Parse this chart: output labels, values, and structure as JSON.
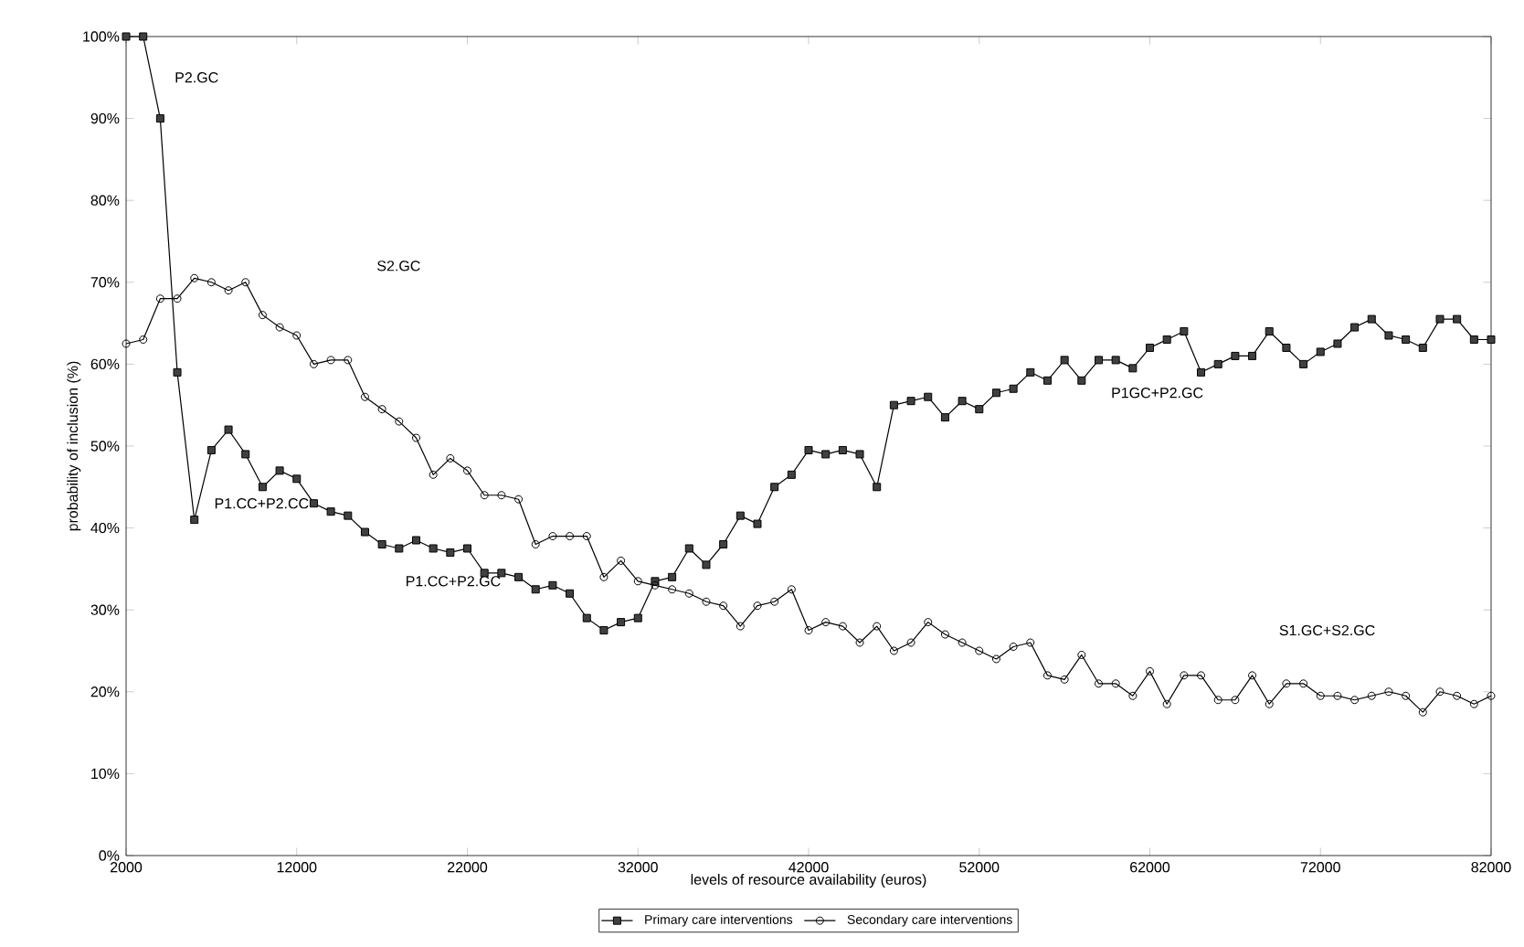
{
  "chart_data": {
    "type": "line",
    "xlabel": "levels of resource availability (euros)",
    "ylabel": "probability of inclusion (%)",
    "x": [
      2000,
      3000,
      4000,
      5000,
      6000,
      7000,
      8000,
      9000,
      10000,
      11000,
      12000,
      13000,
      14000,
      15000,
      16000,
      17000,
      18000,
      19000,
      20000,
      21000,
      22000,
      23000,
      24000,
      25000,
      26000,
      27000,
      28000,
      29000,
      30000,
      31000,
      32000,
      33000,
      34000,
      35000,
      36000,
      37000,
      38000,
      39000,
      40000,
      41000,
      42000,
      43000,
      44000,
      45000,
      46000,
      47000,
      48000,
      49000,
      50000,
      51000,
      52000,
      53000,
      54000,
      55000,
      56000,
      57000,
      58000,
      59000,
      60000,
      61000,
      62000,
      63000,
      64000,
      65000,
      66000,
      67000,
      68000,
      69000,
      70000,
      71000,
      72000,
      73000,
      74000,
      75000,
      76000,
      77000,
      78000,
      79000,
      80000,
      81000,
      82000
    ],
    "series": [
      {
        "name": "Primary care interventions",
        "color": "#000000",
        "marker": "square",
        "values": [
          100,
          100,
          90,
          59,
          41,
          49.5,
          52,
          49,
          45,
          47,
          46,
          43,
          42,
          41.5,
          39.5,
          38,
          37.5,
          38.5,
          37.5,
          37,
          37.5,
          34.5,
          34.5,
          34,
          32.5,
          33,
          32,
          29,
          27.5,
          28.5,
          29,
          33.5,
          34,
          37.5,
          35.5,
          38,
          41.5,
          40.5,
          45,
          46.5,
          49.5,
          49,
          49.5,
          49,
          45,
          55,
          55.5,
          56,
          53.5,
          55.5,
          54.5,
          56.5,
          57,
          59,
          58,
          60.5,
          58,
          60.5,
          60.5,
          59.5,
          62,
          63,
          64,
          59,
          60,
          61,
          61,
          64,
          62,
          60,
          61.5,
          62.5,
          64.5,
          65.5,
          63.5,
          63,
          62,
          65.5,
          65.5,
          63,
          63
        ]
      },
      {
        "name": "Secondary care interventions",
        "color": "#000000",
        "marker": "circle",
        "values": [
          62.5,
          63,
          68,
          68,
          70.5,
          70,
          69,
          70,
          66,
          64.5,
          63.5,
          60,
          60.5,
          60.5,
          56,
          54.5,
          53,
          51,
          46.5,
          48.5,
          47,
          44,
          44,
          43.5,
          38,
          39,
          39,
          39,
          34,
          36,
          33.5,
          33,
          32.5,
          32,
          31,
          30.5,
          28,
          30.5,
          31,
          32.5,
          27.5,
          28.5,
          28,
          26,
          28,
          25,
          26,
          28.5,
          27,
          26,
          25,
          24,
          25.5,
          26,
          22,
          21.5,
          24.5,
          21,
          21,
          19.5,
          22.5,
          18.5,
          22,
          22,
          19,
          19,
          22,
          18.5,
          21,
          21,
          19.5,
          19.5,
          19,
          19.5,
          20,
          19.5,
          17.5,
          20,
          19.5,
          18.5,
          19.5
        ]
      }
    ],
    "xlim": [
      2000,
      82000
    ],
    "xticks": [
      2000,
      12000,
      22000,
      32000,
      42000,
      52000,
      62000,
      72000,
      82000
    ],
    "ylim": [
      0,
      100
    ],
    "yticks": [
      {
        "value": 0,
        "label": "0%"
      },
      {
        "value": 10,
        "label": "10%"
      },
      {
        "value": 20,
        "label": "20%"
      },
      {
        "value": 30,
        "label": "30%"
      },
      {
        "value": 40,
        "label": "40%"
      },
      {
        "value": 50,
        "label": "50%"
      },
      {
        "value": 60,
        "label": "60%"
      },
      {
        "value": 70,
        "label": "70%"
      },
      {
        "value": 80,
        "label": "80%"
      },
      {
        "value": 90,
        "label": "90%"
      },
      {
        "value": 100,
        "label": "100%"
      }
    ],
    "annotations": [
      "P2.GC",
      "S2.GC",
      "P1.CC+P2.CC",
      "P1.CC+P2.GC",
      "P1GC+P2.GC",
      "S1.GC+S2.GC"
    ],
    "legend": "bottom",
    "grid": false
  }
}
